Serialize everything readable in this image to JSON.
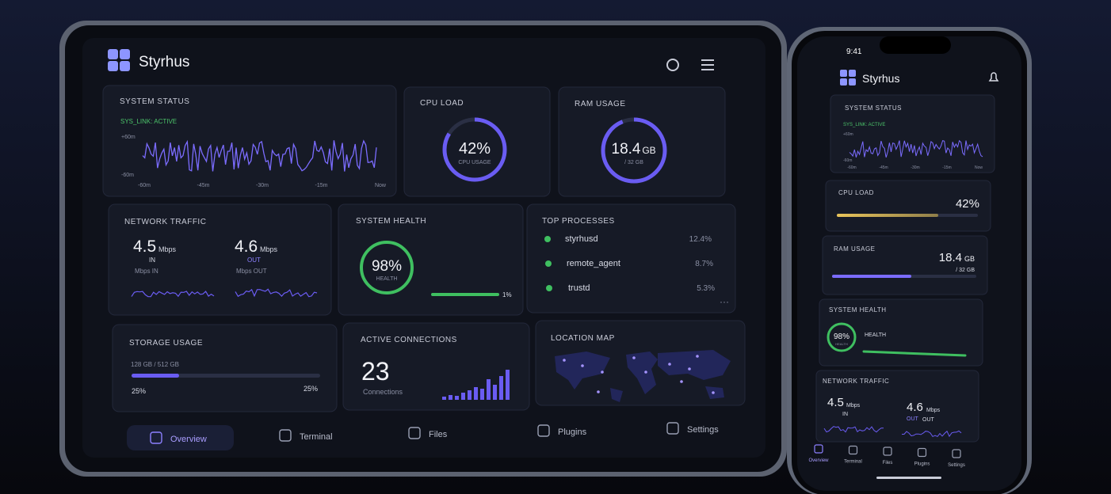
{
  "tablet": {
    "brand": "Styrhus",
    "system_status": {
      "title": "SYSTEM STATUS",
      "link": "SYS_LINK: ACTIVE",
      "y_labels": [
        "+60m",
        "-60m"
      ],
      "x_labels": [
        "-60m",
        "-45m",
        "-30m",
        "-15m",
        "Now"
      ]
    },
    "cpu_load": {
      "title": "CPU LOAD",
      "value": "42%",
      "caption": "CPU USAGE"
    },
    "ram_usage": {
      "title": "RAM USAGE",
      "value": "18.4",
      "unit": "GB",
      "caption": "/ 32 GB"
    },
    "network_traffic": {
      "title": "NETWORK TRAFFIC",
      "in": {
        "value": "4.5",
        "unit": "Mbps",
        "label": "IN",
        "caption": "Mbps IN"
      },
      "out": {
        "value": "4.6",
        "unit": "Mbps",
        "label": "OUT",
        "caption": "Mbps OUT"
      }
    },
    "system_health": {
      "title": "SYSTEM HEALTH",
      "value": "98%",
      "caption": "HEALTH",
      "bar_label": "1%"
    },
    "top_processes": {
      "title": "TOP PROCESSES",
      "rows": [
        [
          "styrhusd",
          "12.4%"
        ],
        [
          "remote_agent",
          "8.7%"
        ],
        [
          "trustd",
          "5.3%"
        ]
      ]
    },
    "storage_usage": {
      "title": "STORAGE USAGE",
      "amount": "128 GB / 512 GB",
      "left_label": "25%",
      "right_label": "25%"
    },
    "active_connections": {
      "title": "ACTIVE CONNECTIONS",
      "value": "23",
      "caption": "Connections"
    },
    "location_map": {
      "title": "LOCATION MAP"
    },
    "nav": [
      "Overview",
      "Terminal",
      "Files",
      "Plugins",
      "Settings"
    ]
  },
  "phone": {
    "time": "9:41",
    "brand": "Styrhus",
    "system_status": {
      "title": "SYSTEM STATUS",
      "link": "SYS_LINK: ACTIVE",
      "y_labels": [
        "+60m",
        "-60m"
      ],
      "x_labels": [
        "-60m",
        "-45m",
        "-30m",
        "-15m",
        "Now"
      ]
    },
    "cpu_load": {
      "title": "CPU LOAD",
      "value": "42%"
    },
    "ram_usage": {
      "title": "RAM USAGE",
      "value": "18.4",
      "unit": "GB",
      "caption": "/ 32 GB"
    },
    "system_health": {
      "title": "SYSTEM HEALTH",
      "value": "98%",
      "ring_caption": "HEALTH",
      "caption": "HEALTH"
    },
    "network_traffic": {
      "title": "NETWORK TRAFFIC",
      "in": {
        "value": "4.5",
        "unit": "Mbps",
        "label": "IN"
      },
      "out": {
        "value": "4.6",
        "unit": "Mbps",
        "label": "OUT",
        "caption": "OUT"
      }
    },
    "nav": [
      "Overview",
      "Terminal",
      "Files",
      "Plugins",
      "Settings"
    ]
  }
}
